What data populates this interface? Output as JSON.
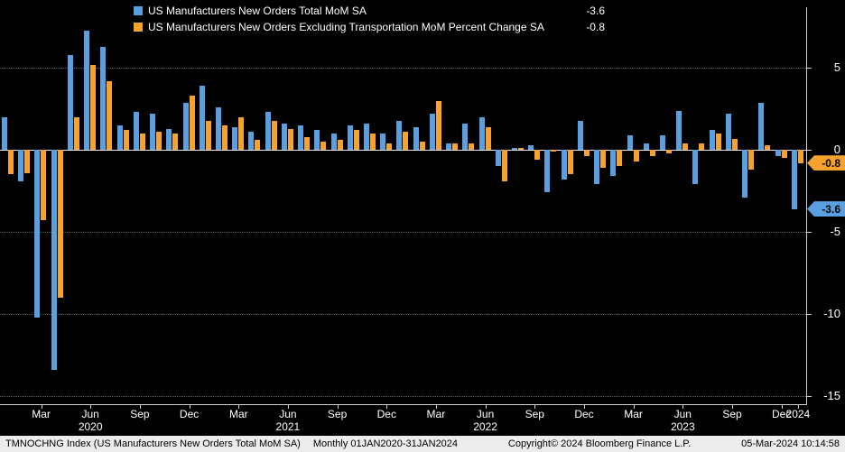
{
  "legend": {
    "items": [
      {
        "label": "US Manufacturers New Orders Total MoM SA",
        "value": "-3.6",
        "color": "#5a9fe0"
      },
      {
        "label": "US Manufacturers New Orders Excluding Transportation MoM Percent Change SA",
        "value": "-0.8",
        "color": "#f8a22e"
      }
    ]
  },
  "y_axis": {
    "ticks": [
      5,
      0,
      -5,
      -10,
      -15
    ]
  },
  "badges": [
    {
      "value": "-0.8",
      "at": -0.8,
      "color": "#f8a22e"
    },
    {
      "value": "-3.6",
      "at": -3.6,
      "color": "#5a9fe0"
    }
  ],
  "x_axis": {
    "labels": [
      {
        "text": "Mar",
        "index": 2
      },
      {
        "text": "Jun",
        "year": "2020",
        "index": 5
      },
      {
        "text": "Sep",
        "index": 8
      },
      {
        "text": "Dec",
        "index": 11
      },
      {
        "text": "Mar",
        "index": 14
      },
      {
        "text": "Jun",
        "year": "2021",
        "index": 17
      },
      {
        "text": "Sep",
        "index": 20
      },
      {
        "text": "Dec",
        "index": 23
      },
      {
        "text": "Mar",
        "index": 26
      },
      {
        "text": "Jun",
        "year": "2022",
        "index": 29
      },
      {
        "text": "Sep",
        "index": 32
      },
      {
        "text": "Dec",
        "index": 35
      },
      {
        "text": "Mar",
        "index": 38
      },
      {
        "text": "Jun",
        "year": "2023",
        "index": 41
      },
      {
        "text": "Sep",
        "index": 44
      },
      {
        "text": "Dec",
        "index": 47
      },
      {
        "text": "",
        "year": "2024",
        "index": 48
      }
    ]
  },
  "chart_data": {
    "type": "bar",
    "title": "",
    "x": [
      "2020-01",
      "2020-02",
      "2020-03",
      "2020-04",
      "2020-05",
      "2020-06",
      "2020-07",
      "2020-08",
      "2020-09",
      "2020-10",
      "2020-11",
      "2020-12",
      "2021-01",
      "2021-02",
      "2021-03",
      "2021-04",
      "2021-05",
      "2021-06",
      "2021-07",
      "2021-08",
      "2021-09",
      "2021-10",
      "2021-11",
      "2021-12",
      "2022-01",
      "2022-02",
      "2022-03",
      "2022-04",
      "2022-05",
      "2022-06",
      "2022-07",
      "2022-08",
      "2022-09",
      "2022-10",
      "2022-11",
      "2022-12",
      "2023-01",
      "2023-02",
      "2023-03",
      "2023-04",
      "2023-05",
      "2023-06",
      "2023-07",
      "2023-08",
      "2023-09",
      "2023-10",
      "2023-11",
      "2023-12",
      "2024-01"
    ],
    "series": [
      {
        "id": "total",
        "name": "US Manufacturers New Orders Total MoM SA",
        "color": "#5a9fe0",
        "values": [
          2.0,
          -1.9,
          -10.2,
          -13.4,
          5.8,
          7.3,
          6.3,
          1.5,
          2.3,
          2.2,
          1.3,
          2.9,
          3.9,
          2.6,
          1.4,
          1.1,
          2.3,
          1.6,
          1.5,
          1.2,
          1.0,
          1.5,
          1.6,
          1.0,
          1.8,
          1.4,
          2.2,
          0.4,
          1.6,
          2.0,
          -1.0,
          0.1,
          0.3,
          -2.6,
          -1.8,
          1.8,
          -2.1,
          -1.6,
          0.9,
          0.4,
          0.9,
          2.4,
          -2.1,
          1.2,
          2.2,
          -2.9,
          2.9,
          -0.4,
          -3.6
        ]
      },
      {
        "id": "ex-transport",
        "name": "US Manufacturers New Orders Excluding Transportation MoM Percent Change SA",
        "color": "#f8a22e",
        "values": [
          -1.5,
          -1.4,
          -4.3,
          -9.0,
          2.0,
          5.2,
          4.2,
          1.2,
          1.0,
          1.1,
          1.0,
          3.3,
          1.8,
          1.5,
          2.0,
          0.6,
          1.8,
          1.3,
          0.8,
          0.5,
          0.6,
          1.2,
          1.0,
          0.4,
          1.1,
          0.5,
          3.0,
          0.4,
          0.4,
          1.4,
          -1.9,
          0.1,
          -0.6,
          -0.1,
          -1.5,
          -0.4,
          -1.1,
          -1.0,
          -0.7,
          -0.4,
          -0.2,
          0.4,
          0.4,
          1.0,
          0.7,
          -1.2,
          0.3,
          -0.5,
          -0.8
        ]
      }
    ],
    "ylim": [
      -15.5,
      8.7
    ],
    "yticks": [
      5,
      0,
      -5,
      -10,
      -15
    ],
    "legend_position": "top-left",
    "grid": "horizontal-dotted"
  },
  "footer": {
    "security": "TMNOCHNG Index (US Manufacturers New Orders Total MoM SA)",
    "range": "Monthly 01JAN2020-31JAN2024",
    "copyright": "Copyright© 2024 Bloomberg Finance L.P.",
    "timestamp": "05-Mar-2024 10:14:58"
  }
}
